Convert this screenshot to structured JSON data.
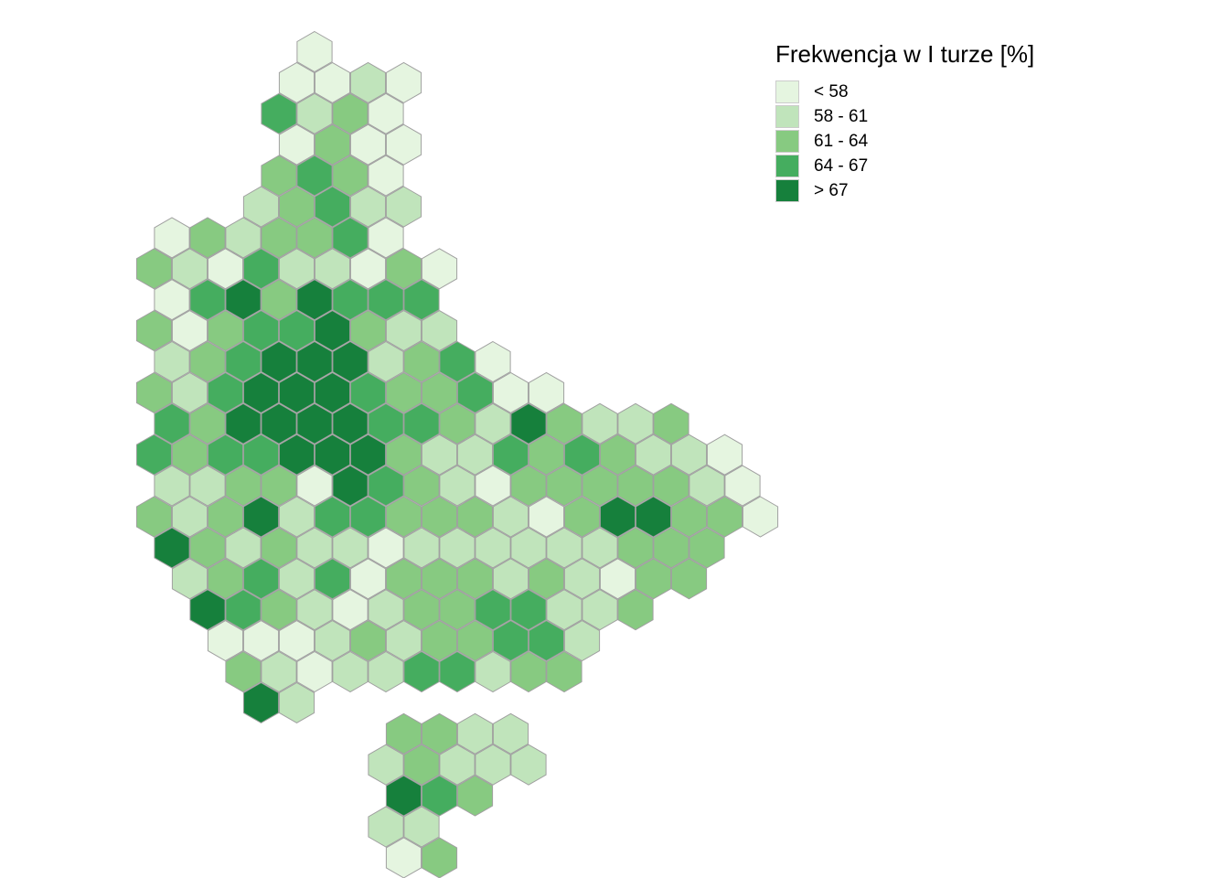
{
  "legend": {
    "title": "Frekwencja w I turze [%]",
    "classes": [
      {
        "label": "< 58",
        "color": "#e5f5e0"
      },
      {
        "label": "58 - 61",
        "color": "#c0e4bb"
      },
      {
        "label": "61 - 64",
        "color": "#87ca81"
      },
      {
        "label": "64 - 67",
        "color": "#45ad5f"
      },
      {
        "label": "> 67",
        "color": "#16803c"
      }
    ]
  },
  "hex_rows": [
    {
      "start": 0.5,
      "classes": [
        0
      ]
    },
    {
      "start": 0,
      "classes": [
        0,
        0,
        1,
        0
      ]
    },
    {
      "start": -0.5,
      "classes": [
        3,
        1,
        2,
        0
      ]
    },
    {
      "start": 0,
      "classes": [
        0,
        2,
        0,
        0
      ]
    },
    {
      "start": -0.5,
      "classes": [
        2,
        3,
        2,
        0
      ]
    },
    {
      "start": -1,
      "classes": [
        1,
        2,
        3,
        1,
        1
      ]
    },
    {
      "start": -3.5,
      "classes": [
        0,
        2,
        1,
        2,
        2,
        3,
        0
      ]
    },
    {
      "start": -4,
      "classes": [
        2,
        1,
        0,
        3,
        1,
        1,
        0,
        2,
        0
      ]
    },
    {
      "start": -3.5,
      "classes": [
        0,
        3,
        4,
        2,
        4,
        3,
        3,
        3
      ]
    },
    {
      "start": -4,
      "classes": [
        2,
        0,
        2,
        3,
        3,
        4,
        2,
        1,
        1
      ]
    },
    {
      "start": -3.5,
      "classes": [
        1,
        2,
        3,
        4,
        4,
        4,
        1,
        2,
        3,
        0
      ]
    },
    {
      "start": -4,
      "classes": [
        2,
        1,
        3,
        4,
        4,
        4,
        3,
        2,
        2,
        3,
        0,
        0
      ]
    },
    {
      "start": -3.5,
      "classes": [
        3,
        2,
        4,
        4,
        4,
        4,
        3,
        3,
        2,
        1,
        4,
        2,
        1,
        1,
        2
      ]
    },
    {
      "start": -4,
      "classes": [
        3,
        2,
        3,
        3,
        4,
        4,
        4,
        2,
        1,
        1,
        3,
        2,
        3,
        2,
        1,
        1,
        0
      ]
    },
    {
      "start": -3.5,
      "classes": [
        1,
        1,
        2,
        2,
        0,
        4,
        3,
        2,
        1,
        0,
        2,
        2,
        2,
        2,
        2,
        1,
        0
      ]
    },
    {
      "start": -4,
      "classes": [
        2,
        1,
        2,
        4,
        1,
        3,
        3,
        2,
        2,
        2,
        1,
        0,
        2,
        4,
        4,
        2,
        2,
        0
      ]
    },
    {
      "start": -3.5,
      "classes": [
        4,
        2,
        1,
        2,
        1,
        1,
        0,
        1,
        1,
        1,
        1,
        1,
        1,
        2,
        2,
        2
      ]
    },
    {
      "start": -3,
      "classes": [
        1,
        2,
        3,
        1,
        3,
        0,
        2,
        2,
        2,
        1,
        2,
        1,
        0,
        2,
        2
      ]
    },
    {
      "start": -2.5,
      "classes": [
        4,
        3,
        2,
        1,
        0,
        1,
        2,
        2,
        3,
        3,
        1,
        1,
        2
      ]
    },
    {
      "start": -2,
      "classes": [
        0,
        0,
        0,
        1,
        2,
        1,
        2,
        2,
        3,
        3,
        1
      ]
    },
    {
      "start": -1.5,
      "classes": [
        2,
        1,
        0,
        1,
        1,
        3,
        3,
        1,
        2,
        2
      ]
    },
    {
      "start": -1,
      "classes": [
        4,
        1
      ]
    },
    {
      "start": 3,
      "classes": [
        2,
        2,
        1,
        1
      ]
    },
    {
      "start": 2.5,
      "classes": [
        1,
        2,
        1,
        1,
        1
      ]
    },
    {
      "start": 3,
      "classes": [
        4,
        3,
        2
      ]
    },
    {
      "start": 2.5,
      "classes": [
        1,
        1
      ]
    },
    {
      "start": 3,
      "classes": [
        0,
        2
      ]
    }
  ]
}
